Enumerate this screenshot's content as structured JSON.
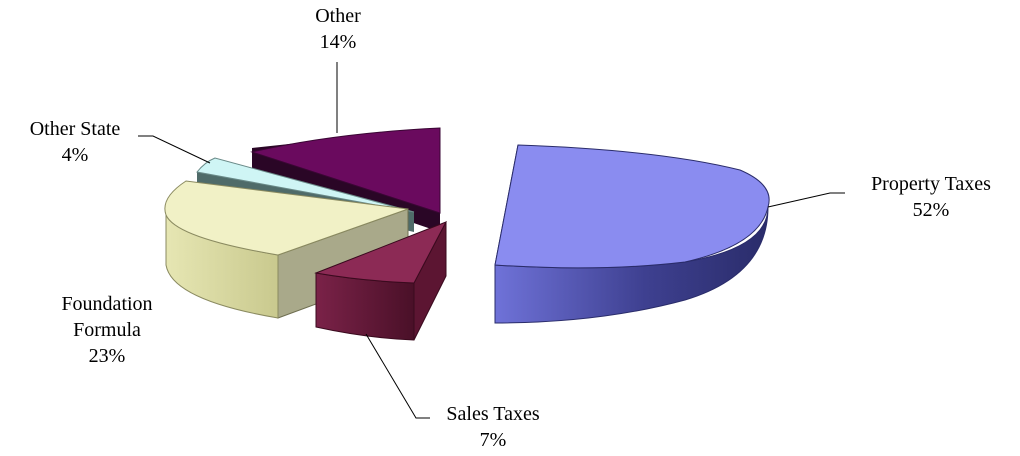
{
  "chart_data": {
    "type": "pie",
    "style": "3d-exploded",
    "title": "",
    "slices": [
      {
        "label": "Property Taxes",
        "value": 52,
        "pct_label": "52%",
        "color": "#8a8cf0"
      },
      {
        "label": "Sales Taxes",
        "value": 7,
        "pct_label": "7%",
        "color": "#8c2a55"
      },
      {
        "label": "Foundation Formula",
        "value": 23,
        "pct_label": "23%",
        "color": "#f1f1c6"
      },
      {
        "label": "Other State",
        "value": 4,
        "pct_label": "4%",
        "color": "#cff5f5"
      },
      {
        "label": "Other",
        "value": 14,
        "pct_label": "14%",
        "color": "#6a0a5e"
      }
    ],
    "legend": "none",
    "labels": "outside-with-leader-lines"
  }
}
